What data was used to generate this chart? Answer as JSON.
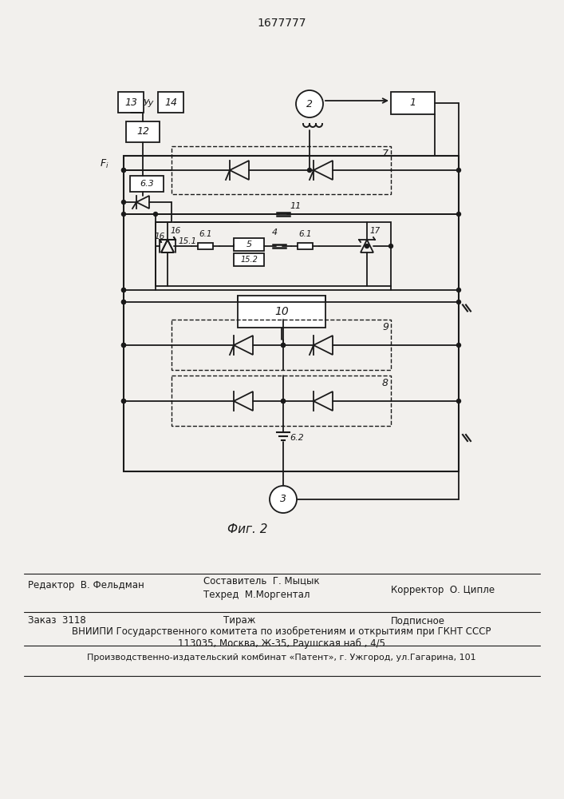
{
  "title": "1677777",
  "background_color": "#f2f0ed",
  "line_color": "#1a1a1a",
  "footer_line1_left": "Редактор  В. Фельдман",
  "footer_line1_center_top": "Составитель  Г. Мыцык",
  "footer_line1_center_bot": "Техред  М.Моргентал",
  "footer_line1_right": "Корректор  О. Ципле",
  "footer_line2_left": "Заказ  3118",
  "footer_line2_center": "Тираж",
  "footer_line2_right": "Подписное",
  "footer_line3": "ВНИИПИ Государственного комитета по изобретениям и открытиям при ГКНТ СССР",
  "footer_line4": "113035, Москва, Ж-35, Раушская наб., 4/5",
  "footer_line5": "Производственно-издательский комбинат «Патент», г. Ужгород, ул.Гагарина, 101"
}
